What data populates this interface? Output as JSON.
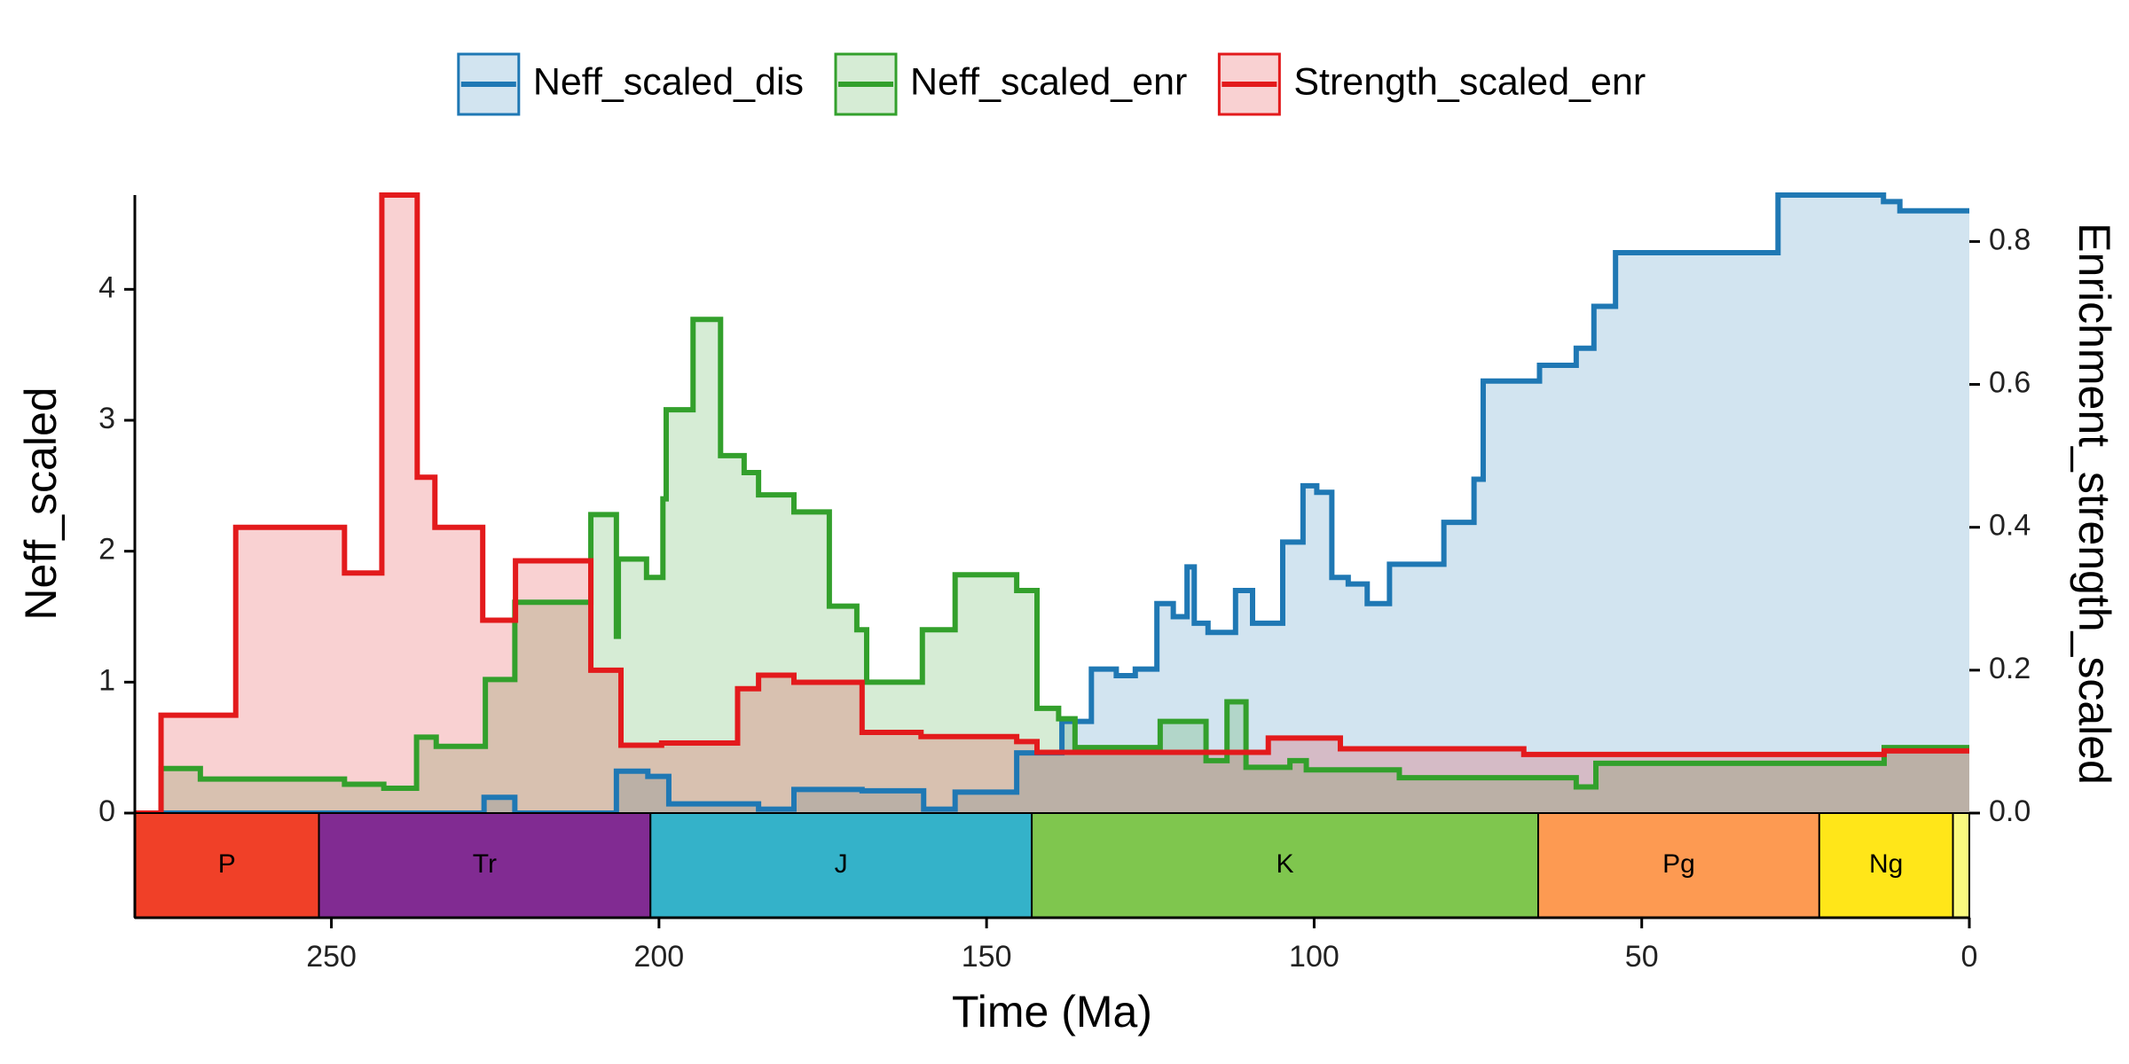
{
  "chart_data": {
    "type": "area-step",
    "xlabel": "Time (Ma)",
    "ylabel": "Neff_scaled",
    "y2label": "Enrichment_strength_scaled",
    "xlim": [
      280,
      0
    ],
    "xticks": [
      250,
      200,
      150,
      100,
      50,
      0
    ],
    "ylim": [
      0,
      4.72
    ],
    "yticks": [
      0,
      1,
      2,
      3,
      4
    ],
    "y2lim": [
      0,
      0.865
    ],
    "y2ticks": [
      {
        "value": 0,
        "label": "0.0"
      },
      0.2,
      0.4,
      0.6,
      0.8
    ],
    "legend": "top",
    "series": [
      {
        "name": "Neff_scaled_dis",
        "color": "#1f78b4",
        "axis": "y",
        "x": [
          280,
          226.7,
          226.7,
          222,
          222,
          206.5,
          206.5,
          201.7,
          201.7,
          198.5,
          198.5,
          184.8,
          184.8,
          179.4,
          179.4,
          169,
          169,
          159.6,
          159.6,
          154.8,
          154.8,
          145.4,
          145.4,
          138.5,
          138.5,
          134,
          134,
          130.2,
          130.2,
          127.3,
          127.3,
          124,
          124,
          121.5,
          121.5,
          119.4,
          119.4,
          118.3,
          118.3,
          116.2,
          116.2,
          112,
          112,
          109.4,
          109.4,
          104.8,
          104.8,
          101.7,
          101.7,
          99.6,
          99.6,
          97.3,
          97.3,
          94.8,
          94.8,
          91.9,
          91.9,
          88.5,
          88.5,
          80.2,
          80.2,
          75.6,
          75.6,
          74.2,
          74.2,
          65.6,
          65.6,
          60,
          60,
          57.3,
          57.3,
          54,
          54,
          29.2,
          29.2,
          13.1,
          13.1,
          10.6,
          10.6,
          0
        ],
        "values": [
          0,
          0,
          0.12,
          0.12,
          0,
          0,
          0.32,
          0.32,
          0.28,
          0.28,
          0.07,
          0.07,
          0.03,
          0.03,
          0.18,
          0.18,
          0.17,
          0.17,
          0.03,
          0.03,
          0.16,
          0.16,
          0.46,
          0.46,
          0.7,
          0.7,
          1.1,
          1.1,
          1.05,
          1.05,
          1.1,
          1.1,
          1.6,
          1.6,
          1.5,
          1.5,
          1.88,
          1.88,
          1.45,
          1.45,
          1.38,
          1.38,
          1.7,
          1.7,
          1.45,
          1.45,
          2.07,
          2.07,
          2.5,
          2.5,
          2.45,
          2.45,
          1.8,
          1.8,
          1.75,
          1.75,
          1.6,
          1.6,
          1.9,
          1.9,
          2.22,
          2.22,
          2.55,
          2.55,
          3.3,
          3.3,
          3.42,
          3.42,
          3.55,
          3.55,
          3.87,
          3.87,
          4.28,
          4.28,
          4.72,
          4.72,
          4.67,
          4.67,
          4.6,
          4.6
        ]
      },
      {
        "name": "Neff_scaled_enr",
        "color": "#33a02c",
        "axis": "y",
        "x": [
          280,
          276,
          276,
          270,
          270,
          248,
          248,
          242,
          242,
          237,
          237,
          234,
          234,
          226.5,
          226.5,
          222,
          222,
          210.4,
          210.4,
          206.5,
          206.5,
          206.2,
          206.2,
          201.9,
          201.9,
          199.4,
          199.4,
          198.9,
          198.9,
          194.8,
          194.8,
          190.6,
          190.6,
          187,
          187,
          184.8,
          184.8,
          179.4,
          179.4,
          174,
          174,
          169.8,
          169.8,
          168.3,
          168.3,
          159.8,
          159.8,
          154.8,
          154.8,
          145.4,
          145.4,
          142.3,
          142.3,
          139,
          139,
          136.5,
          136.5,
          123.5,
          123.5,
          116.5,
          116.5,
          113.3,
          113.3,
          110.4,
          110.4,
          103.7,
          103.7,
          101.2,
          101.2,
          87,
          87,
          60,
          60,
          57,
          57,
          13,
          13,
          0
        ],
        "values": [
          0,
          0,
          0.34,
          0.34,
          0.26,
          0.26,
          0.22,
          0.22,
          0.19,
          0.19,
          0.58,
          0.58,
          0.51,
          0.51,
          1.02,
          1.02,
          1.61,
          1.61,
          2.28,
          2.28,
          1.35,
          1.35,
          1.94,
          1.94,
          1.8,
          1.8,
          2.4,
          2.4,
          3.08,
          3.08,
          3.77,
          3.77,
          2.73,
          2.73,
          2.6,
          2.6,
          2.43,
          2.43,
          2.3,
          2.3,
          1.58,
          1.58,
          1.4,
          1.4,
          1.0,
          1.0,
          1.4,
          1.4,
          1.82,
          1.82,
          1.7,
          1.7,
          0.8,
          0.8,
          0.72,
          0.72,
          0.5,
          0.5,
          0.7,
          0.7,
          0.4,
          0.4,
          0.85,
          0.85,
          0.35,
          0.35,
          0.4,
          0.4,
          0.33,
          0.33,
          0.27,
          0.27,
          0.2,
          0.2,
          0.38,
          0.38,
          0.5,
          0.5
        ]
      },
      {
        "name": "Strength_scaled_enr",
        "color": "#e31a1c",
        "axis": "y2",
        "x": [
          280,
          276,
          276,
          264.6,
          264.6,
          248,
          248,
          242.3,
          242.3,
          236.9,
          236.9,
          234.2,
          234.2,
          226.9,
          226.9,
          221.9,
          221.9,
          210.4,
          210.4,
          205.8,
          205.8,
          199.6,
          199.6,
          188,
          188,
          184.8,
          184.8,
          179.4,
          179.4,
          169,
          169,
          160,
          160,
          145.4,
          145.4,
          142.3,
          142.3,
          107,
          107,
          96,
          96,
          68,
          68,
          13,
          13,
          0
        ],
        "values": [
          0,
          0,
          0.137,
          0.137,
          0.4,
          0.4,
          0.336,
          0.336,
          0.865,
          0.865,
          0.47,
          0.47,
          0.4,
          0.4,
          0.27,
          0.27,
          0.353,
          0.353,
          0.2,
          0.2,
          0.095,
          0.095,
          0.098,
          0.098,
          0.174,
          0.174,
          0.193,
          0.193,
          0.183,
          0.183,
          0.113,
          0.113,
          0.107,
          0.107,
          0.1,
          0.1,
          0.085,
          0.085,
          0.105,
          0.105,
          0.09,
          0.09,
          0.082,
          0.082,
          0.087,
          0.087
        ]
      }
    ],
    "periods": [
      {
        "name": "P",
        "from": 280,
        "to": 251.9,
        "color": "#f04028",
        "label_color": "#ffffff"
      },
      {
        "name": "Tr",
        "from": 251.9,
        "to": 201.3,
        "color": "#812b92",
        "label_color": "#ffffff"
      },
      {
        "name": "J",
        "from": 201.3,
        "to": 143.1,
        "color": "#34b2c9",
        "label_color": "#000000"
      },
      {
        "name": "K",
        "from": 143.1,
        "to": 65.8,
        "color": "#7fc64e",
        "label_color": "#000000"
      },
      {
        "name": "Pg",
        "from": 65.8,
        "to": 22.9,
        "color": "#fd9a52",
        "label_color": "#000000"
      },
      {
        "name": "Ng",
        "from": 22.9,
        "to": 2.5,
        "color": "#ffe619",
        "label_color": "#000000"
      },
      {
        "name": null,
        "from": 2.5,
        "to": 0,
        "color": "#f9f97f",
        "label_color": "#000000"
      }
    ]
  }
}
